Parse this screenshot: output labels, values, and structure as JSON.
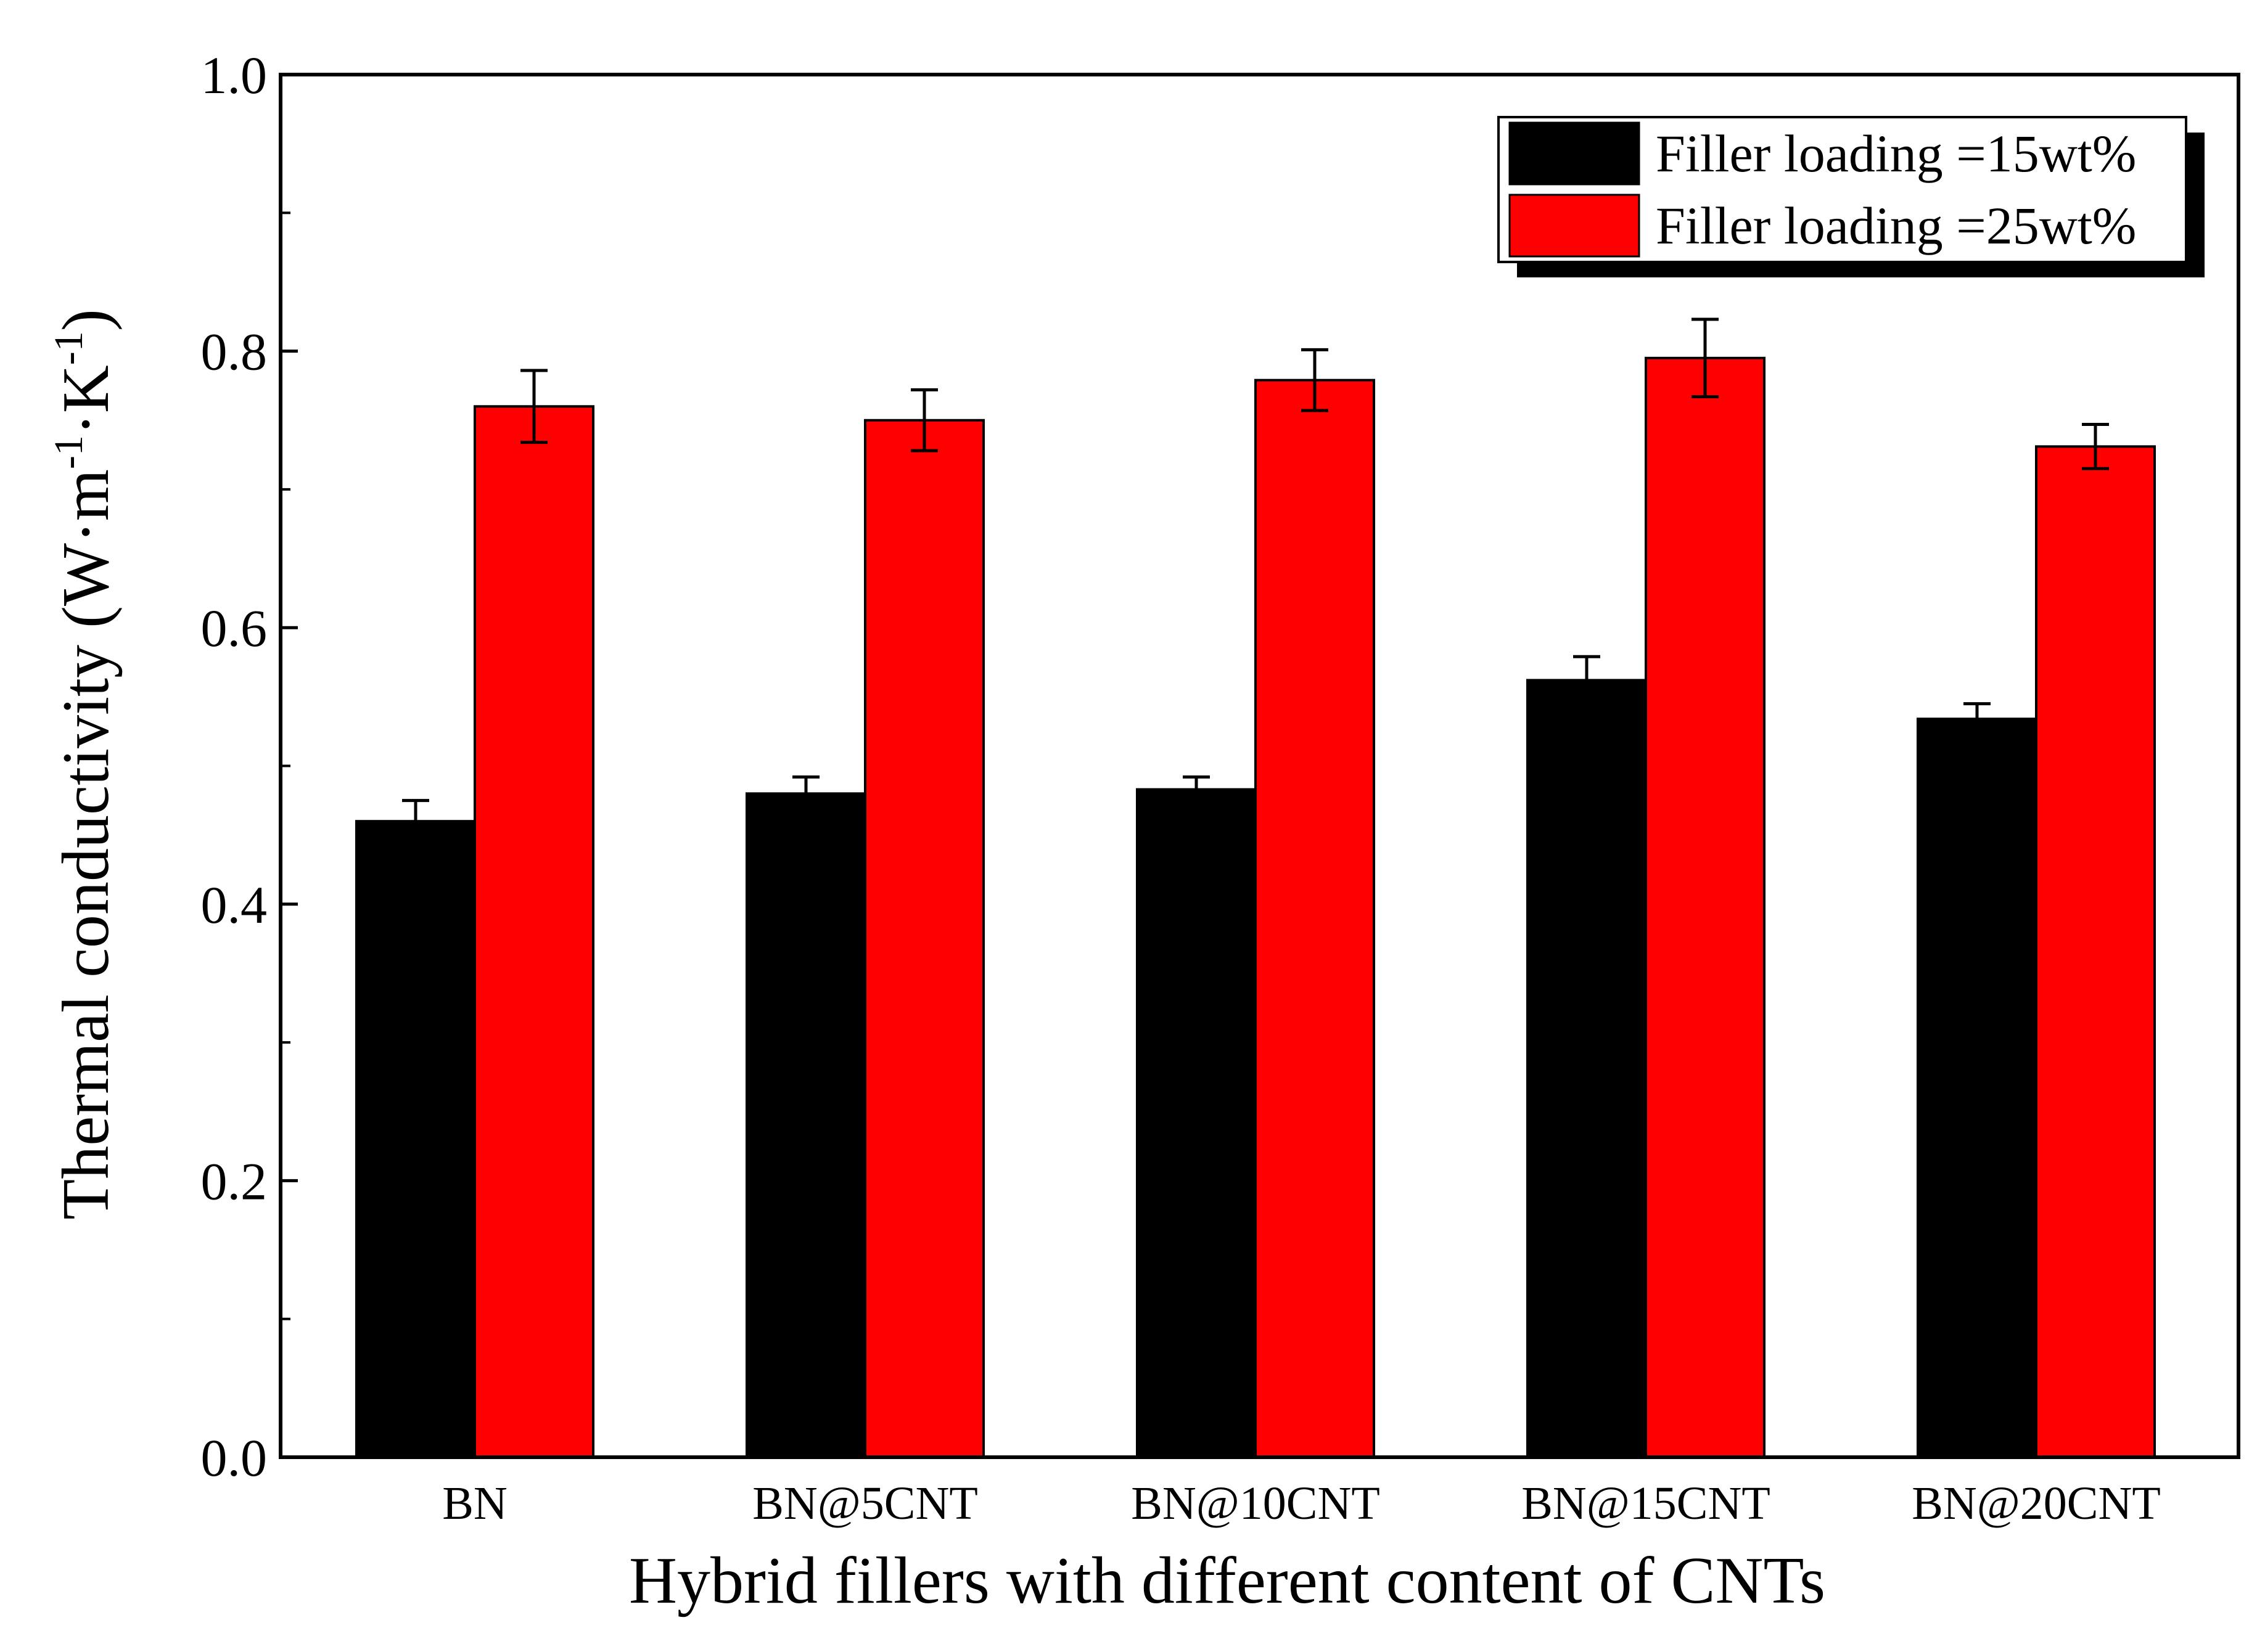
{
  "chart_data": {
    "type": "bar",
    "title": "",
    "xlabel": "Hybrid fillers with different content of CNTs",
    "ylabel": {
      "main": "Thermal conductivity (W·m",
      "sup1": "-1",
      "mid": "·K",
      "sup2": "-1",
      "end": ")"
    },
    "ylim": [
      0,
      1.0
    ],
    "yticks": [
      "0.0",
      "0.2",
      "0.4",
      "0.6",
      "0.8",
      "1.0"
    ],
    "yticks_values": [
      0,
      0.2,
      0.4,
      0.6,
      0.8,
      1.0
    ],
    "categories": [
      "BN",
      "BN@5CNT",
      "BN@10CNT",
      "BN@15CNT",
      "BN@20CNT"
    ],
    "series": [
      {
        "name": "Filler loading =15wt%",
        "color": "#000000",
        "values": [
          0.46,
          0.48,
          0.483,
          0.562,
          0.534
        ],
        "errors": [
          0.015,
          0.012,
          0.009,
          0.017,
          0.011
        ]
      },
      {
        "name": "Filler loading =25wt%",
        "color": "#ff0000",
        "values": [
          0.76,
          0.75,
          0.779,
          0.795,
          0.731
        ],
        "errors": [
          0.026,
          0.022,
          0.022,
          0.028,
          0.016
        ]
      }
    ],
    "legend_position": "top-right",
    "grid": false
  }
}
